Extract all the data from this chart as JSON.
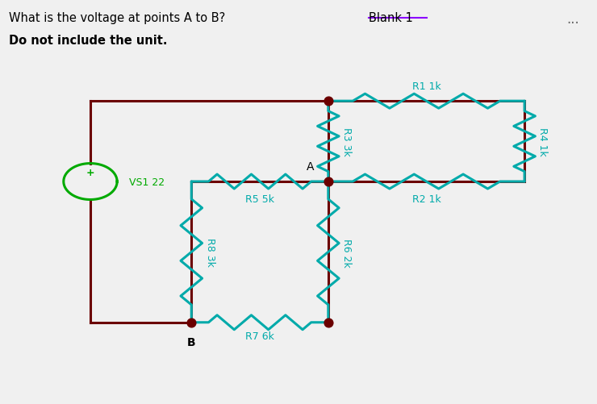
{
  "bg_color": "#f0f0f0",
  "white_bg": "#ffffff",
  "title_line1": "What is the voltage at points A to B?",
  "title_blank": "Blank 1",
  "title_line2": "Do not include the unit.",
  "wire_color": "#6b0000",
  "resistor_color": "#00aaaa",
  "source_color": "#00aa00",
  "label_color": "#00aaaa",
  "circuit": {
    "vs1_label": "VS1 22",
    "r1_label": "R1 1k",
    "r2_label": "R2 1k",
    "r3_label": "R3 3k",
    "r4_label": "R4 1k",
    "r5_label": "R5 5k",
    "r6_label": "R6 2k",
    "r7_label": "R7 6k",
    "r8_label": "R8 3k"
  }
}
